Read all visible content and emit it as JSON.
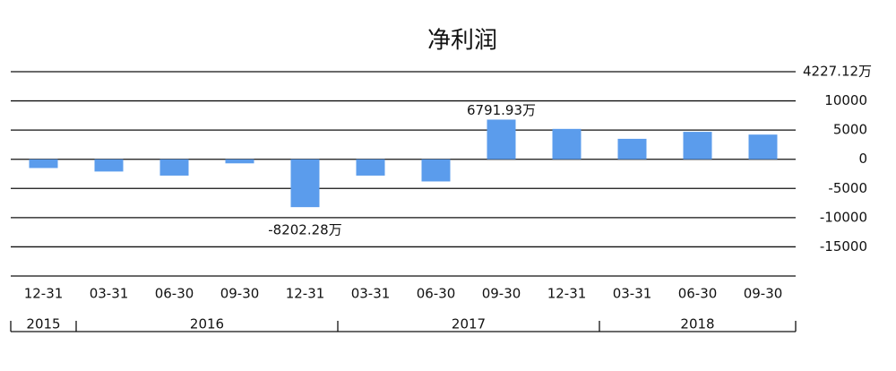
{
  "chart_data": {
    "type": "bar",
    "title": "净利润",
    "categories": [
      "12-31",
      "03-31",
      "06-30",
      "09-30",
      "12-31",
      "03-31",
      "06-30",
      "09-30",
      "12-31",
      "03-31",
      "06-30",
      "09-30"
    ],
    "years": [
      {
        "label": "2015",
        "span": 1
      },
      {
        "label": "2016",
        "span": 4
      },
      {
        "label": "2017",
        "span": 4
      },
      {
        "label": "2018",
        "span": 3
      }
    ],
    "values": [
      -1500,
      -2100,
      -2800,
      -700,
      -8202.28,
      -2800,
      -3800,
      6791.93,
      5200,
      3500,
      4700,
      4227.12
    ],
    "value_labels": [
      null,
      null,
      null,
      null,
      "-8202.28万",
      null,
      null,
      "6791.93万",
      null,
      null,
      null,
      null
    ],
    "annotation": "4227.12万",
    "color": "#5b9cec",
    "ylim": [
      -20000,
      15000
    ],
    "yticks": [
      10000,
      5000,
      0,
      -5000,
      -10000,
      -15000
    ],
    "grid": true
  }
}
